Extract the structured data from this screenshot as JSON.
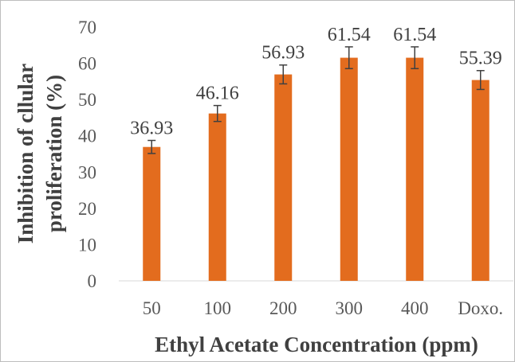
{
  "chart_data": {
    "type": "bar",
    "categories": [
      "50",
      "100",
      "200",
      "300",
      "400",
      "Doxo."
    ],
    "values": [
      36.93,
      46.16,
      56.93,
      61.54,
      61.54,
      55.39
    ],
    "error": [
      1.8,
      2.2,
      2.6,
      3.0,
      3.0,
      2.6
    ],
    "data_labels": [
      "36.93",
      "46.16",
      "56.93",
      "61.54",
      "61.54",
      "55.39"
    ],
    "xlabel": "Ethyl Acetate Concentration (ppm)",
    "ylabel_lines": [
      "Inhibition of cllular",
      "proliferation (%)"
    ],
    "ylim": [
      0,
      70
    ],
    "yticks": [
      0,
      10,
      20,
      30,
      40,
      50,
      60,
      70
    ],
    "grid": false,
    "bar_color": "#e36c1e",
    "error_color": "#404040",
    "legend": "none"
  }
}
